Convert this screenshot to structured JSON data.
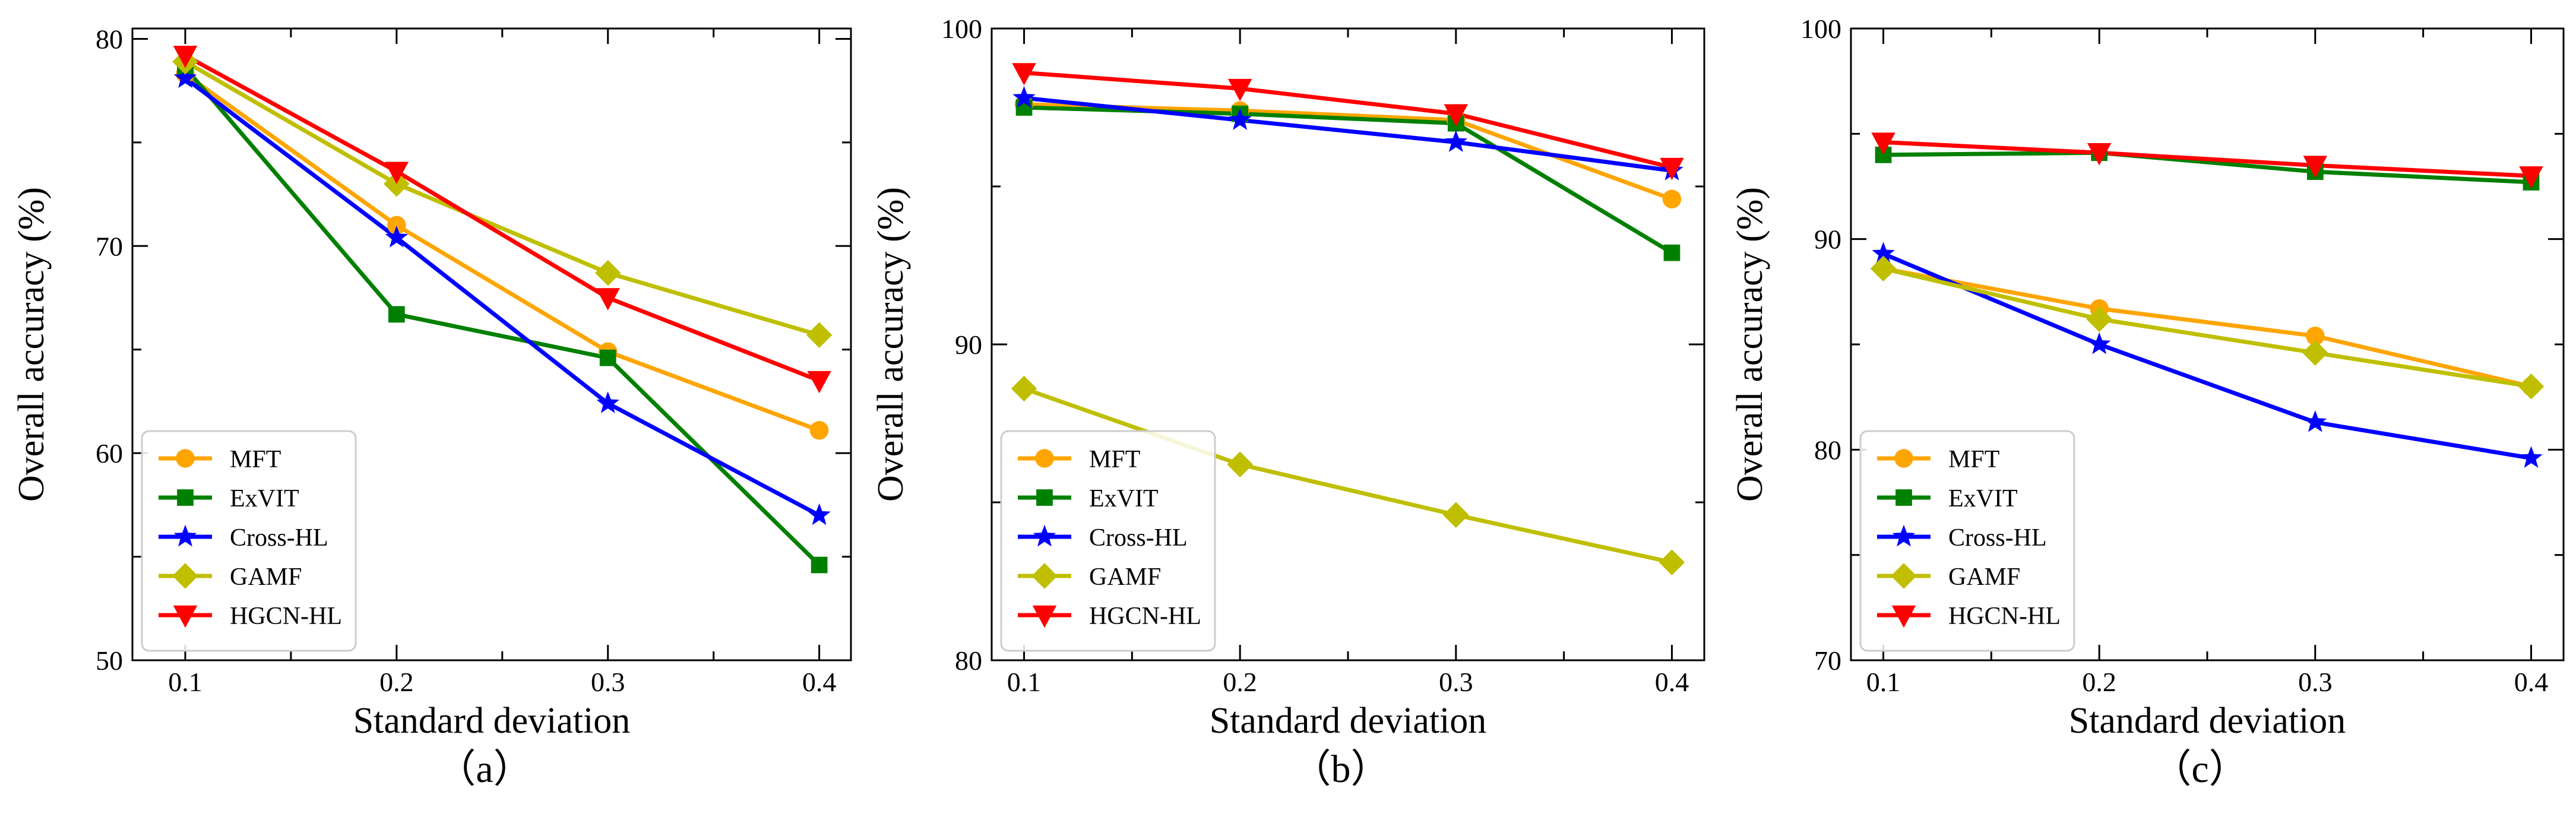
{
  "colors": {
    "MFT": "#FFA500",
    "ExVIT": "#008000",
    "Cross-HL": "#0000FF",
    "GAMF": "#BFBF00",
    "HGCN-HL": "#FF0000"
  },
  "chart_data": [
    {
      "type": "line",
      "panel_label": "（a）",
      "xlabel": "Standard deviation",
      "ylabel": "Overall accuracy (%)",
      "x": [
        0.1,
        0.2,
        0.3,
        0.4
      ],
      "xlim": [
        0.075,
        0.415
      ],
      "ylim": [
        50,
        80.5
      ],
      "yticks": [
        50,
        60,
        70,
        80
      ],
      "legend_position": "bottom-left",
      "series": [
        {
          "name": "MFT",
          "marker": "circle",
          "values": [
            78.3,
            71.0,
            64.9,
            61.1
          ]
        },
        {
          "name": "ExVIT",
          "marker": "square",
          "values": [
            78.6,
            66.7,
            64.6,
            54.6
          ]
        },
        {
          "name": "Cross-HL",
          "marker": "star",
          "values": [
            78.1,
            70.4,
            62.4,
            57.0
          ]
        },
        {
          "name": "GAMF",
          "marker": "diamond",
          "values": [
            78.9,
            73.0,
            68.7,
            65.7
          ]
        },
        {
          "name": "HGCN-HL",
          "marker": "triangle-down",
          "values": [
            79.2,
            73.6,
            67.5,
            63.5
          ]
        }
      ]
    },
    {
      "type": "line",
      "panel_label": "（b）",
      "xlabel": "Standard deviation",
      "ylabel": "Overall accuracy (%)",
      "x": [
        0.1,
        0.2,
        0.3,
        0.4
      ],
      "xlim": [
        0.085,
        0.415
      ],
      "ylim": [
        80,
        100
      ],
      "yticks": [
        80,
        90,
        100
      ],
      "legend_position": "bottom-left",
      "series": [
        {
          "name": "MFT",
          "marker": "circle",
          "values": [
            97.6,
            97.4,
            97.1,
            94.6
          ]
        },
        {
          "name": "ExVIT",
          "marker": "square",
          "values": [
            97.5,
            97.3,
            97.0,
            92.9
          ]
        },
        {
          "name": "Cross-HL",
          "marker": "star",
          "values": [
            97.8,
            97.1,
            96.4,
            95.5
          ]
        },
        {
          "name": "GAMF",
          "marker": "diamond",
          "values": [
            88.6,
            86.2,
            84.6,
            83.1
          ]
        },
        {
          "name": "HGCN-HL",
          "marker": "triangle-down",
          "values": [
            98.6,
            98.1,
            97.3,
            95.6
          ]
        }
      ]
    },
    {
      "type": "line",
      "panel_label": "（c）",
      "xlabel": "Standard deviation",
      "ylabel": "Overall accuracy (%)",
      "x": [
        0.1,
        0.2,
        0.3,
        0.4
      ],
      "xlim": [
        0.085,
        0.415
      ],
      "ylim": [
        70,
        100
      ],
      "yticks": [
        70,
        80,
        90,
        100
      ],
      "legend_position": "bottom-left",
      "series": [
        {
          "name": "MFT",
          "marker": "circle",
          "values": [
            88.6,
            86.7,
            85.4,
            83.0
          ]
        },
        {
          "name": "ExVIT",
          "marker": "square",
          "values": [
            94.0,
            94.1,
            93.2,
            92.7
          ]
        },
        {
          "name": "Cross-HL",
          "marker": "star",
          "values": [
            89.3,
            85.0,
            81.3,
            79.6
          ]
        },
        {
          "name": "GAMF",
          "marker": "diamond",
          "values": [
            88.6,
            86.2,
            84.6,
            83.0
          ]
        },
        {
          "name": "HGCN-HL",
          "marker": "triangle-down",
          "values": [
            94.6,
            94.1,
            93.5,
            93.0
          ]
        }
      ]
    }
  ]
}
